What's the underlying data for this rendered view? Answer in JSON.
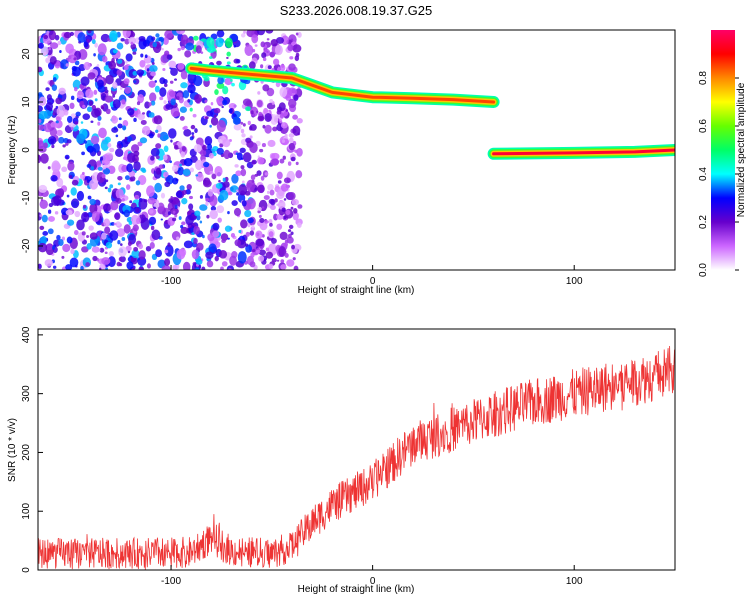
{
  "title": "S233.2026.008.19.37.G25",
  "chart_data": [
    {
      "type": "heatmap",
      "name": "spectrogram",
      "xlabel": "Height of straight line (km)",
      "ylabel": "Frequency (Hz)",
      "xlim": [
        -166,
        150
      ],
      "ylim": [
        -25,
        25
      ],
      "xticks": [
        -100,
        0,
        100
      ],
      "yticks": [
        -20,
        -10,
        0,
        10,
        20
      ],
      "colorbar": {
        "label": "Normalized spectral amplitude",
        "range": [
          0,
          1
        ],
        "ticks": [
          0.0,
          0.2,
          0.4,
          0.6,
          0.8
        ],
        "tick_labels": [
          "0.0",
          "0.2",
          "0.4",
          "0.6",
          "0.8"
        ],
        "colors": [
          "#ffffff",
          "#cc66ff",
          "#6600cc",
          "#0000ff",
          "#00ffff",
          "#00ff66",
          "#66ff00",
          "#ffff00",
          "#ff8800",
          "#ff0000",
          "#ff0066"
        ]
      },
      "noise_region": {
        "x": [
          -166,
          -42
        ],
        "y": [
          -25,
          25
        ],
        "amplitude": 0.15
      },
      "tracks": [
        {
          "name": "descending-line",
          "points": [
            [
              -90,
              17
            ],
            [
              -80,
              16.5
            ],
            [
              -40,
              15
            ],
            [
              -30,
              13.5
            ],
            [
              -20,
              12
            ],
            [
              0,
              11
            ],
            [
              20,
              10.8
            ],
            [
              40,
              10.5
            ],
            [
              60,
              10
            ]
          ],
          "amplitude": 0.85
        },
        {
          "name": "carrier-line",
          "points": [
            [
              60,
              -0.8
            ],
            [
              100,
              -0.6
            ],
            [
              130,
              -0.4
            ],
            [
              150,
              0
            ]
          ],
          "amplitude": 0.95
        }
      ]
    },
    {
      "type": "line",
      "name": "snr",
      "xlabel": "Height of straight line (km)",
      "ylabel": "SNR (10 * v/v)",
      "xlim": [
        -166,
        150
      ],
      "ylim": [
        0,
        410
      ],
      "xticks": [
        -100,
        0,
        100
      ],
      "yticks": [
        0,
        100,
        200,
        300,
        400
      ],
      "color": "#ee3333",
      "trend": {
        "x": [
          -166,
          -120,
          -90,
          -80,
          -70,
          -50,
          -40,
          -30,
          -20,
          -10,
          0,
          20,
          40,
          60,
          80,
          100,
          120,
          140,
          150
        ],
        "y": [
          28,
          28,
          30,
          55,
          32,
          28,
          40,
          80,
          110,
          130,
          150,
          215,
          240,
          265,
          285,
          300,
          315,
          330,
          340
        ]
      },
      "noise_amplitude": [
        25,
        45
      ]
    }
  ]
}
